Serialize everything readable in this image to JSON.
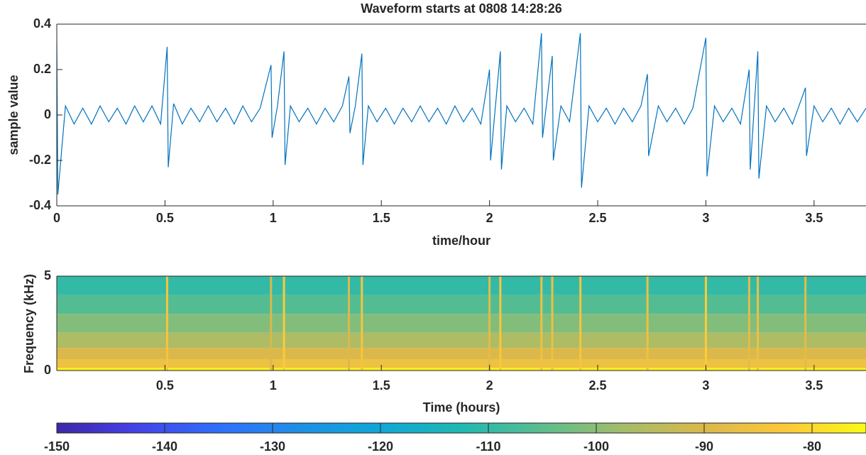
{
  "chart_data": [
    {
      "type": "line",
      "title": "Waveform starts at 0808 14:28:26",
      "x_label": "time/hour",
      "y_label": "sample value",
      "color": "#0072bd",
      "xlim": [
        0,
        3.74
      ],
      "ylim": [
        -0.4,
        0.4
      ],
      "xticks": [
        0,
        0.5,
        1,
        1.5,
        2,
        2.5,
        3,
        3.5
      ],
      "yticks": [
        -0.4,
        -0.2,
        0,
        0.2,
        0.4
      ],
      "x": [
        0,
        0.005,
        0.04,
        0.08,
        0.12,
        0.16,
        0.2,
        0.24,
        0.28,
        0.32,
        0.36,
        0.4,
        0.44,
        0.48,
        0.51,
        0.515,
        0.54,
        0.58,
        0.62,
        0.66,
        0.7,
        0.74,
        0.78,
        0.82,
        0.86,
        0.9,
        0.94,
        0.99,
        0.995,
        1.02,
        1.05,
        1.055,
        1.08,
        1.12,
        1.16,
        1.2,
        1.24,
        1.28,
        1.32,
        1.35,
        1.355,
        1.38,
        1.41,
        1.415,
        1.44,
        1.48,
        1.52,
        1.56,
        1.6,
        1.64,
        1.68,
        1.72,
        1.76,
        1.8,
        1.84,
        1.88,
        1.92,
        1.96,
        2.0,
        2.005,
        2.05,
        2.055,
        2.08,
        2.12,
        2.16,
        2.2,
        2.24,
        2.245,
        2.29,
        2.295,
        2.33,
        2.37,
        2.42,
        2.425,
        2.46,
        2.5,
        2.54,
        2.58,
        2.62,
        2.66,
        2.7,
        2.73,
        2.735,
        2.78,
        2.82,
        2.86,
        2.9,
        2.94,
        3.0,
        3.005,
        3.04,
        3.08,
        3.12,
        3.16,
        3.2,
        3.205,
        3.24,
        3.245,
        3.28,
        3.32,
        3.36,
        3.4,
        3.46,
        3.465,
        3.5,
        3.54,
        3.58,
        3.62,
        3.66,
        3.7,
        3.74
      ],
      "values": [
        0.32,
        -0.35,
        0.04,
        -0.04,
        0.03,
        -0.04,
        0.04,
        -0.03,
        0.03,
        -0.04,
        0.04,
        -0.03,
        0.04,
        -0.04,
        0.3,
        -0.23,
        0.05,
        -0.04,
        0.03,
        -0.03,
        0.04,
        -0.03,
        0.03,
        -0.04,
        0.04,
        -0.03,
        0.03,
        0.22,
        -0.1,
        0.04,
        0.28,
        -0.22,
        0.04,
        -0.03,
        0.03,
        -0.04,
        0.03,
        -0.03,
        0.04,
        0.17,
        -0.08,
        0.04,
        0.27,
        -0.22,
        0.04,
        -0.03,
        0.03,
        -0.04,
        0.03,
        -0.03,
        0.04,
        -0.03,
        0.03,
        -0.04,
        0.04,
        -0.03,
        0.03,
        -0.04,
        0.2,
        -0.2,
        0.28,
        -0.24,
        0.04,
        -0.03,
        0.03,
        -0.04,
        0.36,
        -0.1,
        0.26,
        -0.2,
        0.04,
        -0.03,
        0.36,
        -0.32,
        0.04,
        -0.03,
        0.03,
        -0.04,
        0.03,
        -0.03,
        0.04,
        0.18,
        -0.18,
        0.04,
        -0.03,
        0.03,
        -0.04,
        0.03,
        0.34,
        -0.27,
        0.04,
        -0.03,
        0.03,
        -0.04,
        0.2,
        -0.24,
        0.28,
        -0.28,
        0.04,
        -0.03,
        0.03,
        -0.04,
        0.12,
        -0.18,
        0.04,
        -0.03,
        0.03,
        -0.04,
        0.03,
        -0.03,
        0.03
      ]
    },
    {
      "type": "spectrogram",
      "x_label": "Time (hours)",
      "y_label": "Frequency (kHz)",
      "xlim": [
        0,
        3.74
      ],
      "ylim": [
        0,
        5
      ],
      "xticks": [
        0.5,
        1,
        1.5,
        2,
        2.5,
        3,
        3.5
      ],
      "yticks": [
        0,
        5
      ],
      "freq_edges": [
        0,
        0.15,
        0.6,
        1.2,
        2,
        3,
        4,
        5
      ],
      "levels": [
        -77,
        -86,
        -90,
        -96,
        -101,
        -106,
        -110
      ],
      "event_x": [
        0.51,
        0.99,
        1.05,
        1.35,
        1.41,
        2.0,
        2.05,
        2.24,
        2.29,
        2.42,
        2.73,
        3.0,
        3.2,
        3.24,
        3.46
      ],
      "event_levels": [
        -84,
        -90,
        -82,
        -90,
        -84,
        -88,
        -83,
        -86,
        -86,
        -84,
        -86,
        -82,
        -88,
        -86,
        -88
      ],
      "clim": [
        -150,
        -75
      ],
      "cticks": [
        -150,
        -140,
        -130,
        -120,
        -110,
        -100,
        -90,
        -80
      ],
      "colormap": [
        "#3e26a8",
        "#4443e8",
        "#2f6ffb",
        "#1e8fe7",
        "#10a7d6",
        "#1fb8b2",
        "#5cbd8e",
        "#a3bd6a",
        "#dbb84b",
        "#fcc83a",
        "#f9fb15"
      ]
    }
  ]
}
